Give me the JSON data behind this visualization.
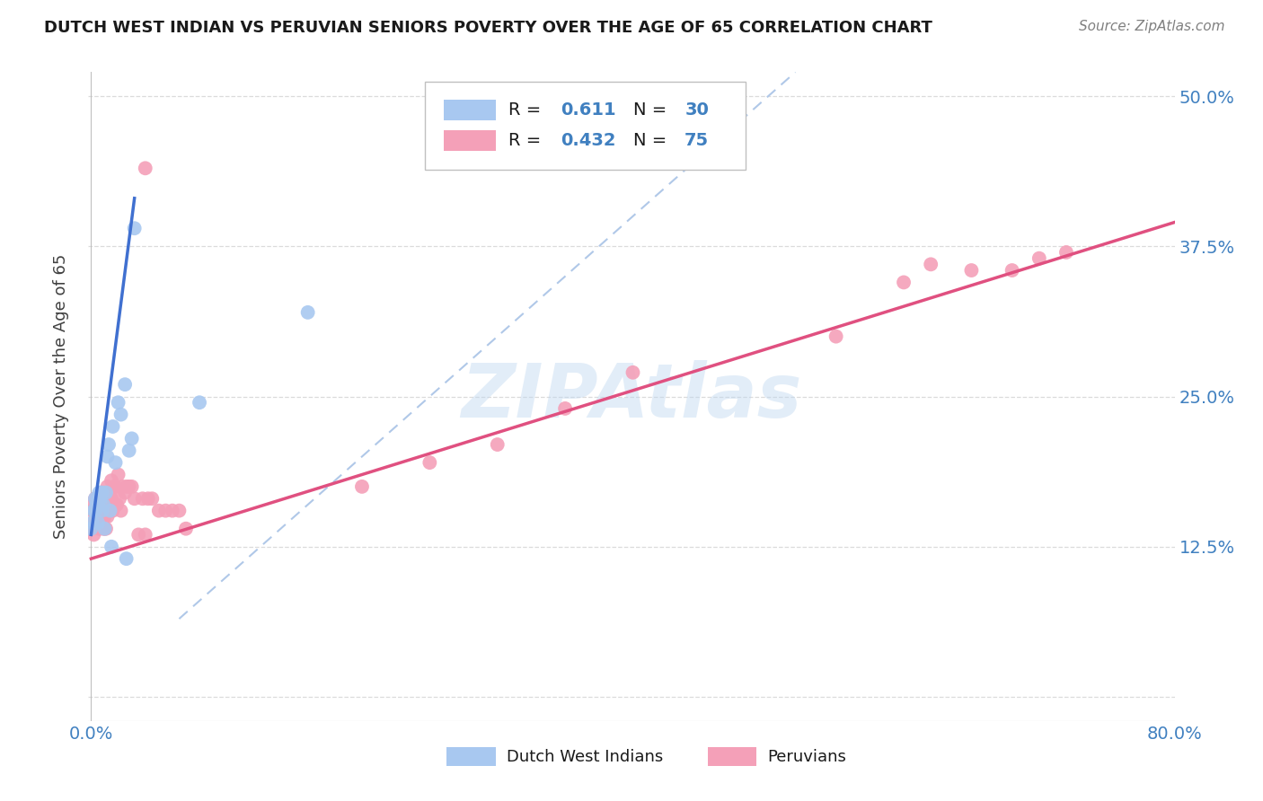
{
  "title": "DUTCH WEST INDIAN VS PERUVIAN SENIORS POVERTY OVER THE AGE OF 65 CORRELATION CHART",
  "source": "Source: ZipAtlas.com",
  "ylabel": "Seniors Poverty Over the Age of 65",
  "xlim": [
    0.0,
    0.8
  ],
  "ylim": [
    0.0,
    0.52
  ],
  "color_blue": "#A8C8F0",
  "color_pink": "#F4A0B8",
  "line_blue": "#4070D0",
  "line_pink": "#E05080",
  "line_dashed_color": "#B0C8E8",
  "R_blue": 0.611,
  "N_blue": 30,
  "R_pink": 0.432,
  "N_pink": 75,
  "legend_label_blue": "Dutch West Indians",
  "legend_label_pink": "Peruvians",
  "watermark": "ZIPAtlas",
  "background_color": "#FFFFFF",
  "grid_color": "#D8D8D8",
  "blue_line_x": [
    0.0,
    0.032
  ],
  "blue_line_y": [
    0.135,
    0.415
  ],
  "pink_line_x": [
    0.0,
    0.8
  ],
  "pink_line_y": [
    0.115,
    0.395
  ],
  "dashed_line_x": [
    0.065,
    0.52
  ],
  "dashed_line_y": [
    0.065,
    0.52
  ],
  "blue_points_x": [
    0.0,
    0.001,
    0.002,
    0.003,
    0.003,
    0.004,
    0.005,
    0.005,
    0.006,
    0.007,
    0.008,
    0.008,
    0.009,
    0.01,
    0.011,
    0.012,
    0.013,
    0.014,
    0.015,
    0.016,
    0.018,
    0.02,
    0.022,
    0.025,
    0.026,
    0.028,
    0.03,
    0.032,
    0.08,
    0.16
  ],
  "blue_points_y": [
    0.14,
    0.145,
    0.155,
    0.155,
    0.165,
    0.16,
    0.145,
    0.165,
    0.17,
    0.165,
    0.155,
    0.17,
    0.16,
    0.14,
    0.17,
    0.2,
    0.21,
    0.155,
    0.125,
    0.225,
    0.195,
    0.245,
    0.235,
    0.26,
    0.115,
    0.205,
    0.215,
    0.39,
    0.245,
    0.32
  ],
  "pink_points_x": [
    0.0,
    0.0,
    0.001,
    0.001,
    0.002,
    0.002,
    0.003,
    0.003,
    0.003,
    0.004,
    0.004,
    0.004,
    0.005,
    0.005,
    0.005,
    0.006,
    0.006,
    0.006,
    0.006,
    0.007,
    0.007,
    0.007,
    0.008,
    0.008,
    0.008,
    0.009,
    0.009,
    0.01,
    0.01,
    0.01,
    0.011,
    0.011,
    0.012,
    0.012,
    0.013,
    0.013,
    0.014,
    0.015,
    0.015,
    0.016,
    0.017,
    0.018,
    0.019,
    0.02,
    0.021,
    0.022,
    0.023,
    0.025,
    0.026,
    0.028,
    0.03,
    0.032,
    0.035,
    0.038,
    0.04,
    0.042,
    0.045,
    0.05,
    0.055,
    0.06,
    0.065,
    0.07,
    0.04,
    0.2,
    0.25,
    0.3,
    0.35,
    0.4,
    0.55,
    0.6,
    0.62,
    0.65,
    0.68,
    0.7,
    0.72
  ],
  "pink_points_y": [
    0.14,
    0.16,
    0.145,
    0.155,
    0.135,
    0.155,
    0.145,
    0.155,
    0.165,
    0.15,
    0.16,
    0.165,
    0.145,
    0.16,
    0.155,
    0.14,
    0.15,
    0.155,
    0.165,
    0.145,
    0.155,
    0.165,
    0.15,
    0.16,
    0.17,
    0.14,
    0.16,
    0.14,
    0.15,
    0.165,
    0.14,
    0.165,
    0.15,
    0.175,
    0.155,
    0.165,
    0.16,
    0.165,
    0.18,
    0.155,
    0.175,
    0.175,
    0.16,
    0.185,
    0.165,
    0.155,
    0.175,
    0.17,
    0.175,
    0.175,
    0.175,
    0.165,
    0.135,
    0.165,
    0.135,
    0.165,
    0.165,
    0.155,
    0.155,
    0.155,
    0.155,
    0.14,
    0.44,
    0.175,
    0.195,
    0.21,
    0.24,
    0.27,
    0.3,
    0.345,
    0.36,
    0.355,
    0.355,
    0.365,
    0.37
  ]
}
